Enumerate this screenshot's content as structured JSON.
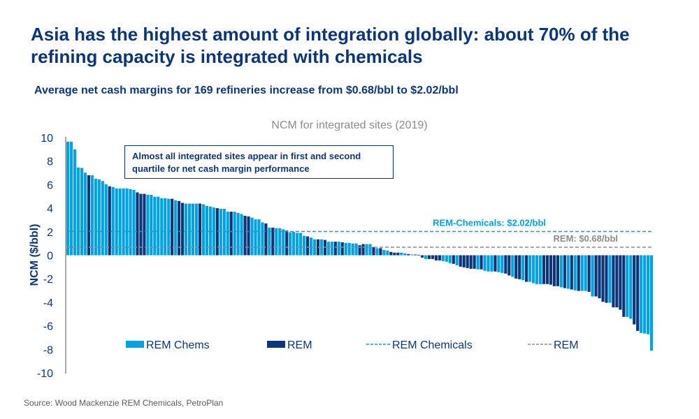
{
  "title": "Asia has the highest amount of integration globally: about 70% of the refining capacity is integrated with chemicals",
  "subtitle": "Average net cash margins for 169 refineries increase from $0.68/bbl to $2.02/bbl",
  "source": "Source: Wood Mackenzie REM Chemicals, PetroPlan",
  "colors": {
    "rem_chems": "#00a3e0",
    "rem": "#0b3679",
    "rem_line": "#8c8c8c",
    "text": "#0b3679"
  },
  "chart_data": {
    "type": "bar",
    "title": "NCM for integrated sites (2019)",
    "ylabel": "NCM ($/bbl)",
    "ylim": [
      -10,
      10
    ],
    "yticks": [
      "10",
      "8",
      "6",
      "4",
      "2",
      "0",
      "-2",
      "-4",
      "-6",
      "-8",
      "-10"
    ],
    "annotation": "Almost all integrated sites appear in first and second quartile for net cash margin performance",
    "reference_lines": [
      {
        "name": "REM Chemicals",
        "label": "REM-Chemicals: $2.02/bbl",
        "value": 2.02,
        "color": "#00a3e0",
        "style": "dashed"
      },
      {
        "name": "REM",
        "label": "REM: $0.68/bbl",
        "value": 0.68,
        "color": "#8c8c8c",
        "style": "dashed"
      }
    ],
    "legend": [
      "REM Chems",
      "REM",
      "REM Chemicals",
      "REM"
    ],
    "legend_position": "bottom-inside",
    "series_key": "C = REM Chems, R = REM",
    "values": [
      9.65,
      9.65,
      9.0,
      7.46,
      7.42,
      7.02,
      6.8,
      6.8,
      6.5,
      6.45,
      6.31,
      6.03,
      5.86,
      5.8,
      5.68,
      5.68,
      5.68,
      5.68,
      5.62,
      5.56,
      5.34,
      5.22,
      5.22,
      5.14,
      5.14,
      4.98,
      4.98,
      4.85,
      4.85,
      4.8,
      4.8,
      4.67,
      4.61,
      4.45,
      4.39,
      4.39,
      4.39,
      4.39,
      4.39,
      4.33,
      4.2,
      4.14,
      4.06,
      4.0,
      3.95,
      3.95,
      3.7,
      3.7,
      3.7,
      3.6,
      3.5,
      3.35,
      3.3,
      3.2,
      3.05,
      3.05,
      2.8,
      2.7,
      2.35,
      2.35,
      2.3,
      2.3,
      2.2,
      2.1,
      1.95,
      2.0,
      1.9,
      1.9,
      1.65,
      1.6,
      1.5,
      1.35,
      1.35,
      1.35,
      1.3,
      1.15,
      1.15,
      1.15,
      1.15,
      1.1,
      1.05,
      1.05,
      1.0,
      1.0,
      0.85,
      0.95,
      0.95,
      0.95,
      0.7,
      0.6,
      0.6,
      0.45,
      0.4,
      0.28,
      0.22,
      0.22,
      0.22,
      0.16,
      0.1,
      0.06,
      0.06,
      0.04,
      -0.2,
      -0.32,
      -0.32,
      -0.32,
      -0.44,
      -0.44,
      -0.5,
      -0.55,
      -0.67,
      -0.73,
      -0.85,
      -0.97,
      -1.03,
      -1.09,
      -1.15,
      -1.15,
      -1.2,
      -1.2,
      -1.32,
      -1.38,
      -1.38,
      -1.38,
      -1.44,
      -1.5,
      -1.56,
      -1.72,
      -1.84,
      -1.98,
      -2.04,
      -2.12,
      -2.26,
      -2.26,
      -2.37,
      -2.45,
      -2.45,
      -2.45,
      -2.45,
      -2.5,
      -2.63,
      -2.63,
      -2.73,
      -2.79,
      -2.85,
      -2.91,
      -2.99,
      -3.03,
      -3.03,
      -3.03,
      -3.11,
      -3.5,
      -3.5,
      -3.66,
      -3.96,
      -4.04,
      -4.04,
      -4.43,
      -4.43,
      -4.63,
      -5.24,
      -5.24,
      -5.4,
      -5.88,
      -6.43,
      -6.6,
      -6.65,
      -6.71,
      -8.11
    ],
    "series": "CCCCCCRCCCCCRCCCCCCCRRRCCCCCCCRCRRCCCCRCCCCRCCCRCCCRRCCCCRCRCCCRCCCCCRCCRCRCCRCRCCCCRRCCRCRCCRRRCCRCRRRCRRRRCCCRCRRRRRCRCCCRCCRRCRRCRCCCCRRRRRCRCRCRCCRCRRRRCRRRRCCRRC"
  }
}
